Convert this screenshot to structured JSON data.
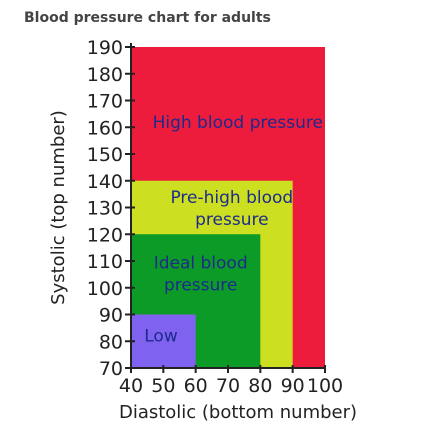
{
  "chart_data": {
    "type": "area",
    "title": "Blood pressure chart for adults",
    "xlabel": "Diastolic (bottom number)",
    "ylabel": "Systolic (top number)",
    "xlim": [
      40,
      100
    ],
    "ylim": [
      70,
      190
    ],
    "xticks": [
      40,
      50,
      60,
      70,
      80,
      90,
      100
    ],
    "yticks": [
      70,
      80,
      90,
      100,
      110,
      120,
      130,
      140,
      150,
      160,
      170,
      180,
      190
    ],
    "grid": false,
    "legend": "none",
    "zones": [
      {
        "label": "High blood pressure",
        "label_lines": [
          "High blood pressure"
        ],
        "x_max": 100,
        "y_max": 190,
        "color": "#ee1c3c",
        "text_color": "#1d2a8c"
      },
      {
        "label": "Pre-high blood pressure",
        "label_lines": [
          "Pre-high blood",
          "pressure"
        ],
        "x_max": 90,
        "y_max": 140,
        "color": "#cce021",
        "text_color": "#1d2a8c"
      },
      {
        "label": "Ideal blood pressure",
        "label_lines": [
          "Ideal blood",
          "pressure"
        ],
        "x_max": 80,
        "y_max": 120,
        "color": "#0d9b28",
        "text_color": "#1d2a8c"
      },
      {
        "label": "Low",
        "label_lines": [
          "Low"
        ],
        "x_max": 60,
        "y_max": 90,
        "color": "#8062f0",
        "text_color": "#1d2a8c"
      }
    ]
  }
}
